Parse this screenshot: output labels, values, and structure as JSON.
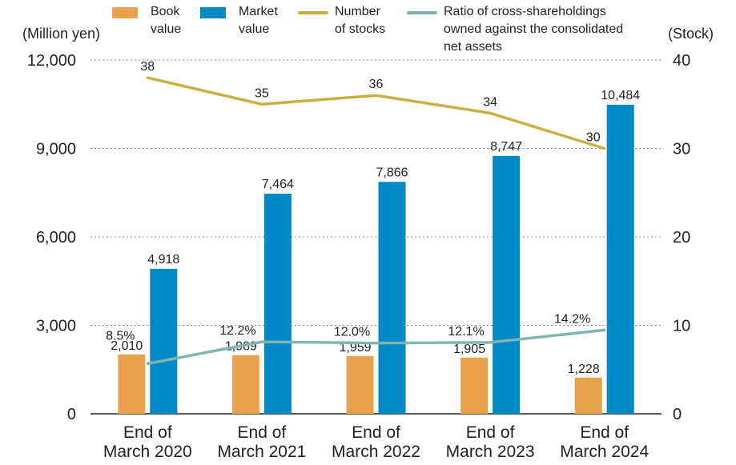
{
  "chart_data": {
    "type": "bar",
    "categories": [
      "End of\nMarch 2020",
      "End of\nMarch 2021",
      "End of\nMarch 2022",
      "End of\nMarch 2023",
      "End of\nMarch 2024"
    ],
    "y_left_label": "(Million yen)",
    "y_right_label": "(Stock)",
    "y_left_ticks": [
      "0",
      "3,000",
      "6,000",
      "9,000",
      "12,000"
    ],
    "y_left_range": [
      0,
      12000
    ],
    "y_right_ticks": [
      "0",
      "10",
      "20",
      "30",
      "40"
    ],
    "y_right_range": [
      0,
      40
    ],
    "grid": "horizontal dashed",
    "legend_position": "top",
    "series": [
      {
        "name": "Book\nvalue",
        "kind": "bar",
        "axis": "left",
        "color": "#e8a24c",
        "values": [
          2010,
          1989,
          1959,
          1905,
          1228
        ],
        "labels": [
          "2,010",
          "1,989",
          "1,959",
          "1,905",
          "1,228"
        ]
      },
      {
        "name": "Market\nvalue",
        "kind": "bar",
        "axis": "left",
        "color": "#0088c7",
        "values": [
          4918,
          7464,
          7866,
          8747,
          10484
        ],
        "labels": [
          "4,918",
          "7,464",
          "7,866",
          "8,747",
          "10,484"
        ]
      },
      {
        "name": "Number\nof stocks",
        "kind": "line",
        "axis": "right",
        "color": "#c8b042",
        "values": [
          38,
          35,
          36,
          34,
          30
        ],
        "labels": [
          "38",
          "35",
          "36",
          "34",
          "30"
        ]
      },
      {
        "name": "Ratio of cross-shareholdings\nowned against the consolidated\nnet assets",
        "kind": "line",
        "axis": "ratio",
        "color": "#7fb5b0",
        "values": [
          8.5,
          12.2,
          12.0,
          12.1,
          14.2
        ],
        "labels": [
          "8.5%",
          "12.2%",
          "12.0%",
          "12.1%",
          "14.2%"
        ]
      }
    ]
  }
}
